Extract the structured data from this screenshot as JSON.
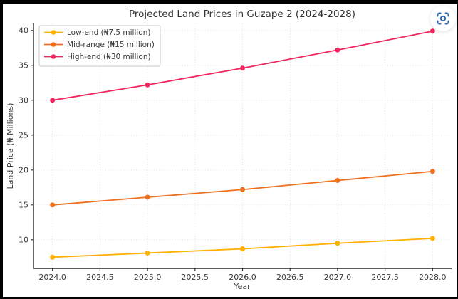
{
  "window": {
    "title": "Projected Land Prices in Guzape 2 (2024-2028)"
  },
  "overlay": {
    "focus_button_icon": "focus-scan-icon",
    "icon_color": "#2b6cb0"
  },
  "chart_data": {
    "type": "line",
    "title": "Projected Land Prices in Guzape 2 (2024-2028)",
    "xlabel": "Year",
    "ylabel": "Land Price (₦ Millions)",
    "x": [
      2024,
      2025,
      2026,
      2027,
      2028
    ],
    "series": [
      {
        "name": "Low-end (₦7.5 million)",
        "color": "#FFB000",
        "values": [
          7.5,
          8.1,
          8.7,
          9.5,
          10.2
        ]
      },
      {
        "name": "Mid-range (₦15 million)",
        "color": "#EE6F1E",
        "values": [
          15.0,
          16.1,
          17.2,
          18.5,
          19.8
        ]
      },
      {
        "name": "High-end (₦30 million)",
        "color": "#F0265E",
        "values": [
          30.0,
          32.2,
          34.6,
          37.2,
          39.9
        ]
      }
    ],
    "xticks": [
      2024.0,
      2024.5,
      2025.0,
      2025.5,
      2026.0,
      2026.5,
      2027.0,
      2027.5,
      2028.0
    ],
    "yticks": [
      10,
      15,
      20,
      25,
      30,
      35,
      40
    ],
    "xlim": [
      2023.8,
      2028.2
    ],
    "ylim": [
      5.9,
      41.0
    ],
    "grid": true,
    "grid_style": "dotted",
    "legend_position": "top-left",
    "marker": "circle",
    "colors": {
      "grid": "#dcdcdc",
      "axis": "#262626",
      "text": "#3a3a3a",
      "legend_border": "#c9c9c9",
      "plot_background": "#ffffff",
      "frame": "#000000"
    }
  }
}
